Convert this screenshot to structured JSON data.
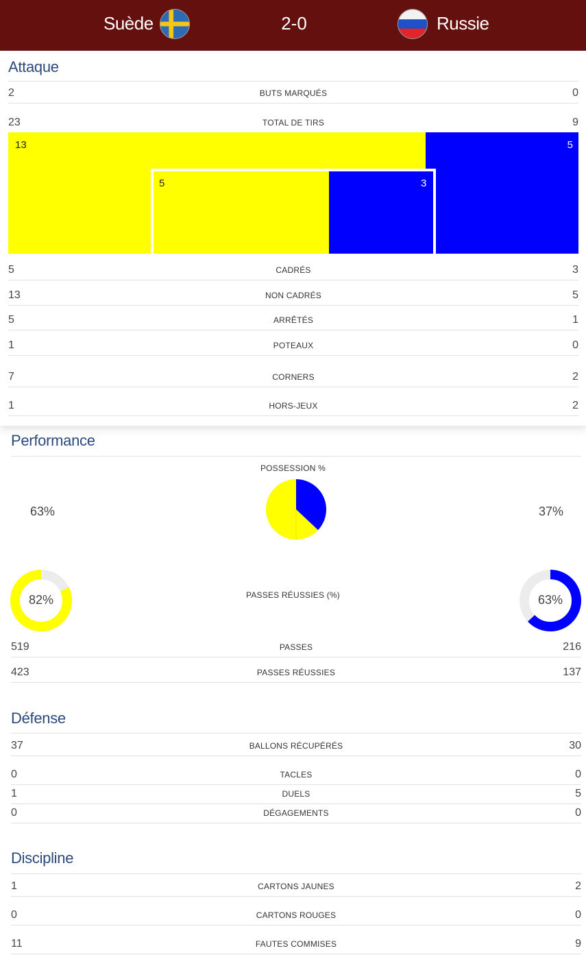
{
  "match": {
    "home": {
      "name": "Suède",
      "flag": "sweden-flag-icon"
    },
    "away": {
      "name": "Russie",
      "flag": "russia-flag-icon"
    },
    "score": "2-0"
  },
  "colors": {
    "home": "#ffff00",
    "away": "#0000ff",
    "header": "#64100f",
    "title": "#2b4a7b"
  },
  "attack": {
    "title": "Attaque",
    "rows_top": [
      {
        "label": "BUTS MARQUÉS",
        "home": "2",
        "away": "0"
      },
      {
        "label": "TOTAL DE TIRS",
        "home": "23",
        "away": "9"
      }
    ],
    "shots_chart": {
      "off_target": {
        "home": 13,
        "away": 5
      },
      "on_target": {
        "home": 5,
        "away": 3
      }
    },
    "rows_bottom": [
      {
        "label": "CADRÉS",
        "home": "5",
        "away": "3"
      },
      {
        "label": "NON CADRÉS",
        "home": "13",
        "away": "5"
      },
      {
        "label": "ARRÊTÉS",
        "home": "5",
        "away": "1"
      },
      {
        "label": "POTEAUX",
        "home": "1",
        "away": "0"
      },
      {
        "label": "CORNERS",
        "home": "7",
        "away": "2"
      },
      {
        "label": "HORS-JEUX",
        "home": "1",
        "away": "2"
      }
    ]
  },
  "performance": {
    "title": "Performance",
    "possession": {
      "label": "POSSESSION %",
      "home": 63,
      "away": 37,
      "home_text": "63%",
      "away_text": "37%"
    },
    "pass_accuracy": {
      "label": "PASSES RÉUSSIES (%)",
      "home": 82,
      "away": 63,
      "home_text": "82%",
      "away_text": "63%"
    },
    "rows": [
      {
        "label": "PASSES",
        "home": "519",
        "away": "216"
      },
      {
        "label": "PASSES RÉUSSIES",
        "home": "423",
        "away": "137"
      }
    ]
  },
  "defense": {
    "title": "Défense",
    "rows": [
      {
        "label": "BALLONS RÉCUPÉRÉS",
        "home": "37",
        "away": "30"
      },
      {
        "label": "TACLES",
        "home": "0",
        "away": "0"
      },
      {
        "label": "DUELS",
        "home": "1",
        "away": "5"
      },
      {
        "label": "DÉGAGEMENTS",
        "home": "0",
        "away": "0"
      }
    ]
  },
  "discipline": {
    "title": "Discipline",
    "rows": [
      {
        "label": "CARTONS JAUNES",
        "home": "1",
        "away": "2"
      },
      {
        "label": "CARTONS ROUGES",
        "home": "0",
        "away": "0"
      },
      {
        "label": "FAUTES COMMISES",
        "home": "11",
        "away": "9"
      }
    ]
  }
}
